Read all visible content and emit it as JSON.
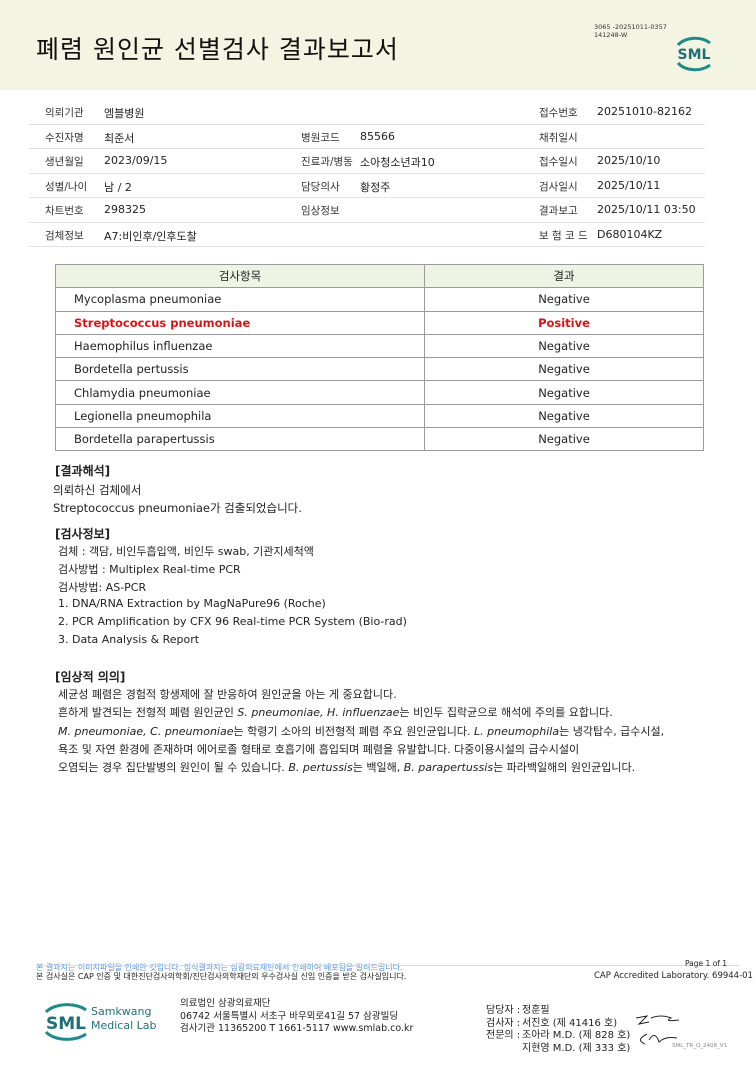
{
  "header": {
    "title": "폐렴 원인균 선별검사 결과보고서",
    "doc_id_line1": "3065 -20251011-0357",
    "doc_id_line2": "141248-W",
    "logo_text": "SML",
    "band_color": "#f3f4e1"
  },
  "info": [
    [
      {
        "l": "의뢰기관",
        "v": "엠블병원"
      },
      {
        "l": "",
        "v": ""
      },
      {
        "l": "접수번호",
        "v": "20251010-82162"
      }
    ],
    [
      {
        "l": "수진자명",
        "v": "최준서"
      },
      {
        "l": "병원코드",
        "v": "85566"
      },
      {
        "l": "채취일시",
        "v": ""
      }
    ],
    [
      {
        "l": "생년월일",
        "v": "2023/09/15"
      },
      {
        "l": "진료과/병동",
        "v": "소아청소년과10"
      },
      {
        "l": "접수일시",
        "v": "2025/10/10"
      }
    ],
    [
      {
        "l": "성별/나이",
        "v": "남 / 2"
      },
      {
        "l": "담당의사",
        "v": "황정주"
      },
      {
        "l": "검사일시",
        "v": "2025/10/11"
      }
    ],
    [
      {
        "l": "차트번호",
        "v": "298325"
      },
      {
        "l": "임상정보",
        "v": ""
      },
      {
        "l": "결과보고",
        "v": "2025/10/11 03:50"
      }
    ],
    [
      {
        "l": "검체정보",
        "v": "A7:비인후/인후도찰"
      },
      {
        "l": "",
        "v": ""
      },
      {
        "l": "보 험 코 드",
        "v": "D680104KZ"
      }
    ]
  ],
  "results": {
    "headers": [
      "검사항목",
      "결과"
    ],
    "positive_color": "#e01010",
    "rows": [
      {
        "name": "Mycoplasma pneumoniae",
        "result": "Negative",
        "positive": false
      },
      {
        "name": "Streptococcus pneumoniae",
        "result": "Positive",
        "positive": true
      },
      {
        "name": "Haemophilus influenzae",
        "result": "Negative",
        "positive": false
      },
      {
        "name": "Bordetella pertussis",
        "result": "Negative",
        "positive": false
      },
      {
        "name": "Chlamydia pneumoniae",
        "result": "Negative",
        "positive": false
      },
      {
        "name": "Legionella pneumophila",
        "result": "Negative",
        "positive": false
      },
      {
        "name": "Bordetella parapertussis",
        "result": "Negative",
        "positive": false
      }
    ]
  },
  "interpretation": {
    "heading": "[결과해석]",
    "lines": [
      "의뢰하신 검체에서",
      "Streptococcus pneumoniae가 검출되었습니다."
    ]
  },
  "test_info": {
    "heading": "[검사정보]",
    "lines": [
      "검체 : 객담, 비인두흡입액, 비인두 swab, 기관지세척액",
      "검사방법 : Multiplex Real-time PCR",
      "검사방법: AS-PCR",
      "1. DNA/RNA Extraction by MagNaPure96 (Roche)",
      "2. PCR Amplification by CFX 96 Real-time PCR System (Bio-rad)",
      "3. Data Analysis & Report"
    ]
  },
  "clinical": {
    "heading": "[임상적 의의]",
    "lines": [
      [
        {
          "t": "세균성 폐렴은 경험적 항생제에 잘 반응하여 원인균을 아는 게 중요합니다.",
          "i": false
        }
      ],
      [
        {
          "t": "흔하게 발견되는 전형적 폐렴 원인균인 ",
          "i": false
        },
        {
          "t": "S. pneumoniae, H. influenzae",
          "i": true
        },
        {
          "t": "는 비인두 집락균으로 해석에 주의를 요합니다.",
          "i": false
        }
      ],
      [
        {
          "t": "M. pneumoniae, C. pneumoniae",
          "i": true
        },
        {
          "t": "는 학령기 소아의 비전형적 폐렴 주요 원인균입니다. ",
          "i": false
        },
        {
          "t": "L. pneumophila",
          "i": true
        },
        {
          "t": "는 냉각탑수, 급수시설,",
          "i": false
        }
      ],
      [
        {
          "t": "욕조 및 자연 환경에 존재하며 에어로졸 형태로 호흡기에 흡입되며 폐렴을 유발합니다. 다중이용시설의 급수시설이",
          "i": false
        }
      ],
      [
        {
          "t": "오염되는 경우 집단발병의 원인이 될 수 있습니다. ",
          "i": false
        },
        {
          "t": "B. pertussis",
          "i": true
        },
        {
          "t": "는 백일해, ",
          "i": false
        },
        {
          "t": "B. parapertussis",
          "i": true
        },
        {
          "t": "는 파라백일해의 원인균입니다.",
          "i": false
        }
      ]
    ]
  },
  "footer": {
    "notice_blue": "본 결과지는 이미지파일을 인쇄한 것입니다. 정식결과지는 삼광의료재단에서 인쇄하여 배포됨을 알려드립니다.",
    "notice": "본 검사실은 CAP 인증 및 대한진단검사의학회/진단검사의학재단의 우수검사실 신임 인증을 받은 검사실입니다.",
    "page": "Page 1 of 1",
    "cap": "CAP Accredited Laboratory. 69944-01",
    "logo_name_1": "Samkwang",
    "logo_name_2": "Medical Lab",
    "address": [
      "의료법인 삼광의료재단",
      "06742 서울특별시 서초구 바우뫼로41길 57 삼광빌딩",
      "검사기관 11365200 T 1661-5117 www.smlab.co.kr"
    ],
    "staff": [
      {
        "role": "담당자 :",
        "name": "정훈필"
      },
      {
        "role": "검사자 :",
        "name": "서진호 (제 41416 호)"
      },
      {
        "role": "전문의 :",
        "name": "조아라 M.D. (제 828 호)"
      },
      {
        "role": "",
        "name": "지현영 M.D. (제 333 호)"
      }
    ],
    "form_code": "SML_TR_Q_2408_V1"
  }
}
